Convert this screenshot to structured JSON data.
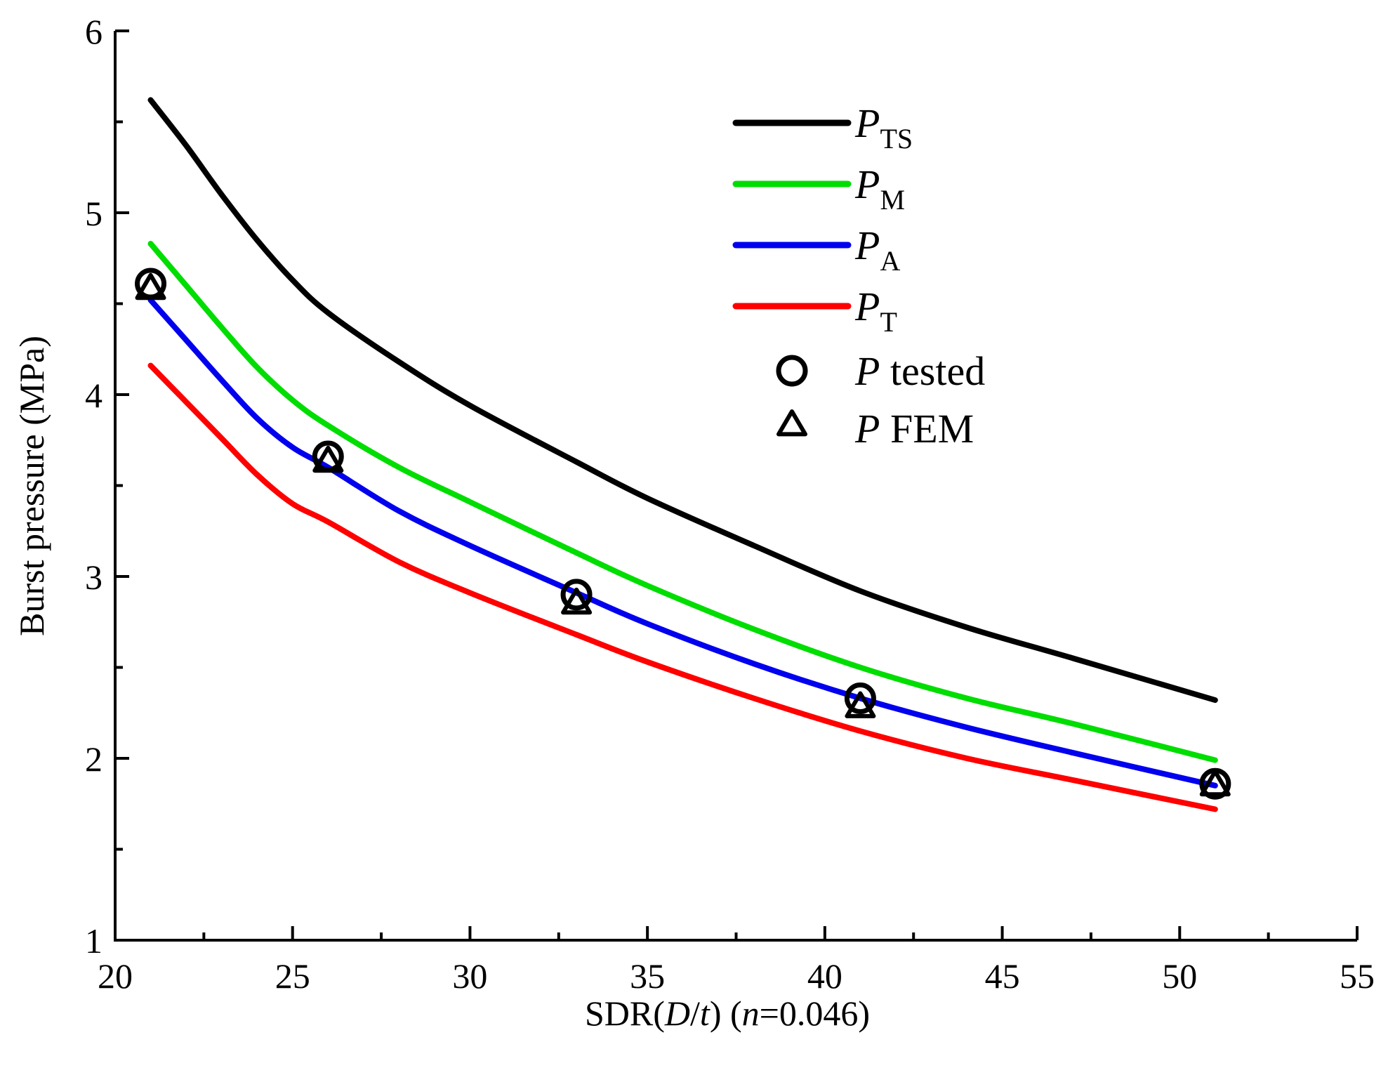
{
  "chart_data": {
    "type": "line",
    "title": "",
    "xlabel_parts": [
      {
        "text": "SDR(",
        "italic": false
      },
      {
        "text": "D",
        "italic": true
      },
      {
        "text": "/",
        "italic": false
      },
      {
        "text": "t",
        "italic": true
      },
      {
        "text": ") (",
        "italic": false
      },
      {
        "text": "n",
        "italic": true
      },
      {
        "text": "=0.046)",
        "italic": false
      }
    ],
    "ylabel": "Burst pressure (MPa)",
    "xlim": [
      20,
      55
    ],
    "ylim": [
      1,
      6
    ],
    "xticks": [
      20,
      25,
      30,
      35,
      40,
      45,
      50,
      55
    ],
    "yticks": [
      1,
      2,
      3,
      4,
      5,
      6
    ],
    "x_minor_step": 2.5,
    "y_minor_step": 0.5,
    "legend_position": "top-right",
    "series": [
      {
        "name": "P",
        "sub": "TS",
        "kind": "line",
        "color": "#000000",
        "x": [
          21,
          22,
          23,
          24,
          25,
          26,
          28,
          30,
          33,
          35,
          38,
          41,
          44,
          47,
          51
        ],
        "y": [
          5.62,
          5.37,
          5.1,
          4.85,
          4.63,
          4.45,
          4.18,
          3.94,
          3.63,
          3.43,
          3.17,
          2.92,
          2.72,
          2.55,
          2.32
        ]
      },
      {
        "name": "P",
        "sub": "M",
        "kind": "line",
        "color": "#00dd00",
        "x": [
          21,
          22,
          23,
          24,
          25,
          26,
          28,
          30,
          33,
          35,
          38,
          41,
          44,
          47,
          51
        ],
        "y": [
          4.83,
          4.6,
          4.37,
          4.15,
          3.97,
          3.83,
          3.6,
          3.41,
          3.13,
          2.95,
          2.71,
          2.5,
          2.33,
          2.19,
          1.99
        ]
      },
      {
        "name": "P",
        "sub": "A",
        "kind": "line",
        "color": "#0000ee",
        "x": [
          21,
          22,
          23,
          24,
          25,
          26,
          28,
          30,
          33,
          35,
          38,
          41,
          44,
          47,
          51
        ],
        "y": [
          4.52,
          4.3,
          4.08,
          3.87,
          3.71,
          3.6,
          3.36,
          3.17,
          2.91,
          2.74,
          2.52,
          2.33,
          2.17,
          2.03,
          1.85
        ]
      },
      {
        "name": "P",
        "sub": "T",
        "kind": "line",
        "color": "#ff0000",
        "x": [
          21,
          22,
          23,
          24,
          25,
          26,
          28,
          30,
          33,
          35,
          38,
          41,
          44,
          47,
          51
        ],
        "y": [
          4.16,
          3.96,
          3.76,
          3.56,
          3.4,
          3.3,
          3.08,
          2.91,
          2.68,
          2.53,
          2.33,
          2.15,
          2.0,
          1.88,
          1.72
        ]
      },
      {
        "name": "P",
        "suffix": " tested",
        "kind": "circle",
        "color": "#000000",
        "x": [
          21,
          26,
          33,
          41,
          51
        ],
        "y": [
          4.61,
          3.66,
          2.9,
          2.33,
          1.86
        ]
      },
      {
        "name": "P",
        "suffix": " FEM",
        "kind": "triangle",
        "color": "#000000",
        "x": [
          21,
          26,
          33,
          41,
          51
        ],
        "y": [
          4.58,
          3.63,
          2.85,
          2.28,
          1.85
        ]
      }
    ]
  }
}
